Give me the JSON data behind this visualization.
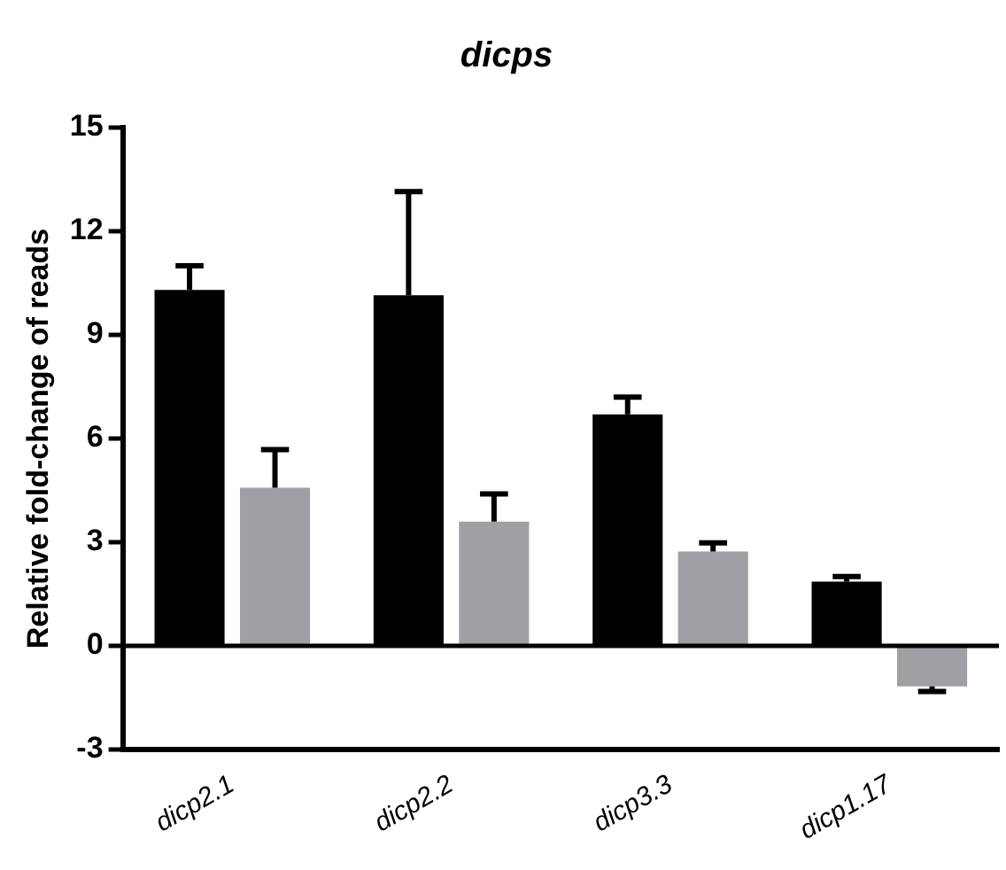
{
  "chart_data": {
    "type": "bar",
    "title": "dicps",
    "ylabel": "Relative fold-change of reads",
    "categories": [
      "dicp2.1",
      "dicp2.2",
      "dicp3.3",
      "dicp1.17"
    ],
    "series": [
      {
        "color": "#000000",
        "values": [
          10.3,
          10.15,
          6.7,
          1.86
        ],
        "errors": [
          0.7,
          3.0,
          0.5,
          0.15
        ]
      },
      {
        "color": "#a0a0a4",
        "values": [
          4.58,
          3.6,
          2.73,
          -1.17
        ],
        "errors": [
          1.1,
          0.8,
          0.25,
          0.15
        ]
      }
    ],
    "ylim": [
      -3,
      15
    ],
    "yticks": [
      -3,
      0,
      3,
      6,
      9,
      12,
      15
    ],
    "grid": false,
    "legend": false,
    "ref_lines": [
      {
        "axis": "y",
        "value": 0
      }
    ]
  }
}
